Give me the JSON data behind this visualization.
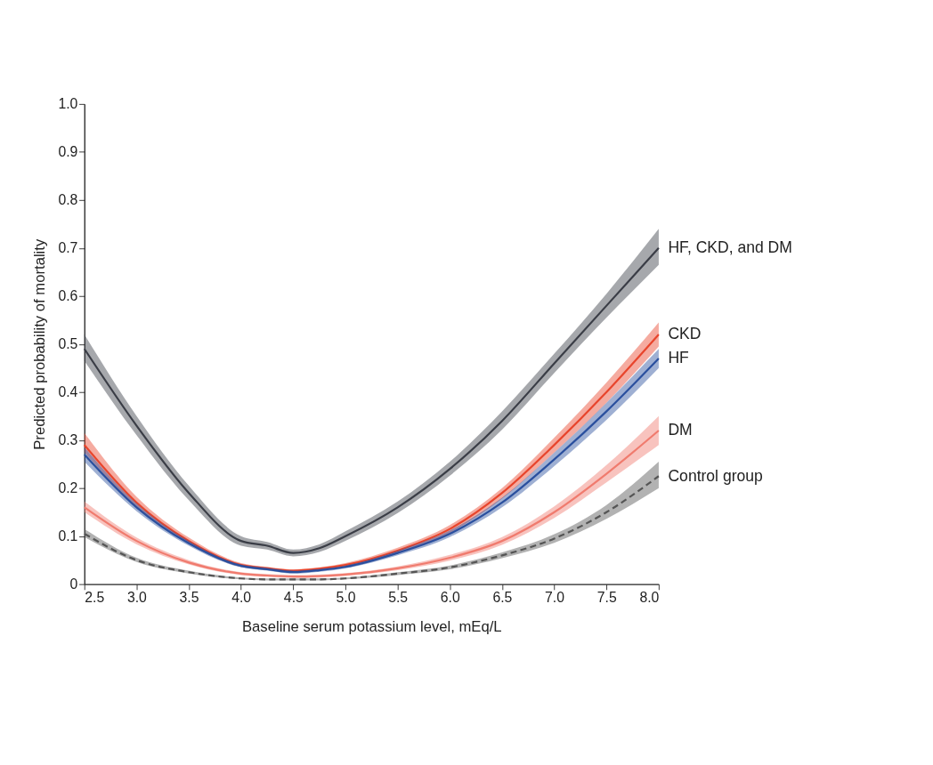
{
  "chart_data": {
    "type": "line",
    "xlabel": "Baseline serum potassium level, mEq/L",
    "ylabel": "Predicted probability of mortality",
    "x": [
      2.5,
      3.0,
      3.5,
      4.0,
      4.25,
      4.5,
      4.75,
      5.0,
      5.5,
      6.0,
      6.5,
      7.0,
      7.5,
      8.0
    ],
    "xlim": [
      2.5,
      8.0
    ],
    "ylim": [
      0,
      1.0
    ],
    "xticks": [
      2.5,
      {
        "value": 3,
        "label": "3.0"
      },
      3.5,
      {
        "value": 4,
        "label": "4.0"
      },
      4.5,
      {
        "value": 5,
        "label": "5.0"
      },
      5.5,
      {
        "value": 6,
        "label": "6.0"
      },
      6.5,
      {
        "value": 7,
        "label": "7.0"
      },
      7.5,
      {
        "value": 8,
        "label": "8.0"
      }
    ],
    "yticks": [
      0,
      0.1,
      0.2,
      0.3,
      0.4,
      0.5,
      0.6,
      0.7,
      0.8,
      0.9,
      {
        "value": 1,
        "label": "1.0"
      }
    ],
    "grid": false,
    "marker": "none",
    "series": [
      {
        "name": "HF, CKD, and DM",
        "color": "#3a3d46",
        "line_style": "solid",
        "values": [
          0.49,
          0.33,
          0.19,
          0.09,
          0.08,
          0.065,
          0.075,
          0.1,
          0.16,
          0.24,
          0.34,
          0.46,
          0.58,
          0.7
        ],
        "lower": [
          0.465,
          0.31,
          0.175,
          0.08,
          0.072,
          0.058,
          0.067,
          0.09,
          0.148,
          0.226,
          0.322,
          0.44,
          0.555,
          0.665
        ],
        "upper": [
          0.52,
          0.35,
          0.205,
          0.1,
          0.088,
          0.072,
          0.083,
          0.11,
          0.172,
          0.255,
          0.36,
          0.48,
          0.605,
          0.74
        ]
      },
      {
        "name": "CKD",
        "color": "#e8452c",
        "line_style": "solid",
        "values": [
          0.29,
          0.17,
          0.09,
          0.04,
          0.033,
          0.028,
          0.032,
          0.04,
          0.07,
          0.115,
          0.19,
          0.29,
          0.4,
          0.52
        ],
        "lower": [
          0.275,
          0.16,
          0.084,
          0.036,
          0.03,
          0.025,
          0.029,
          0.036,
          0.064,
          0.107,
          0.178,
          0.274,
          0.378,
          0.495
        ],
        "upper": [
          0.315,
          0.182,
          0.097,
          0.044,
          0.036,
          0.031,
          0.035,
          0.044,
          0.076,
          0.123,
          0.2,
          0.305,
          0.42,
          0.545
        ]
      },
      {
        "name": "HF",
        "color": "#2a4f9e",
        "line_style": "solid",
        "values": [
          0.27,
          0.16,
          0.085,
          0.038,
          0.031,
          0.025,
          0.029,
          0.036,
          0.065,
          0.105,
          0.17,
          0.26,
          0.36,
          0.47
        ],
        "lower": [
          0.255,
          0.152,
          0.08,
          0.035,
          0.028,
          0.022,
          0.026,
          0.033,
          0.06,
          0.098,
          0.16,
          0.246,
          0.342,
          0.45
        ],
        "upper": [
          0.285,
          0.168,
          0.09,
          0.041,
          0.034,
          0.028,
          0.032,
          0.039,
          0.07,
          0.112,
          0.18,
          0.274,
          0.378,
          0.49
        ]
      },
      {
        "name": "DM",
        "color": "#f07b6e",
        "line_style": "solid",
        "values": [
          0.16,
          0.09,
          0.045,
          0.022,
          0.018,
          0.016,
          0.017,
          0.02,
          0.033,
          0.055,
          0.09,
          0.15,
          0.23,
          0.32
        ],
        "lower": [
          0.15,
          0.083,
          0.041,
          0.019,
          0.015,
          0.013,
          0.014,
          0.017,
          0.029,
          0.049,
          0.082,
          0.138,
          0.212,
          0.29
        ],
        "upper": [
          0.172,
          0.097,
          0.05,
          0.025,
          0.021,
          0.019,
          0.02,
          0.023,
          0.037,
          0.061,
          0.098,
          0.162,
          0.248,
          0.35
        ]
      },
      {
        "name": "Control group",
        "color": "#555555",
        "line_style": "dashed",
        "values": [
          0.105,
          0.05,
          0.025,
          0.012,
          0.01,
          0.01,
          0.01,
          0.012,
          0.022,
          0.035,
          0.06,
          0.095,
          0.15,
          0.225
        ],
        "lower": [
          0.098,
          0.046,
          0.022,
          0.01,
          0.008,
          0.008,
          0.008,
          0.01,
          0.019,
          0.031,
          0.054,
          0.086,
          0.136,
          0.2
        ],
        "upper": [
          0.115,
          0.055,
          0.028,
          0.014,
          0.012,
          0.012,
          0.012,
          0.014,
          0.025,
          0.039,
          0.066,
          0.104,
          0.165,
          0.255
        ]
      }
    ]
  }
}
